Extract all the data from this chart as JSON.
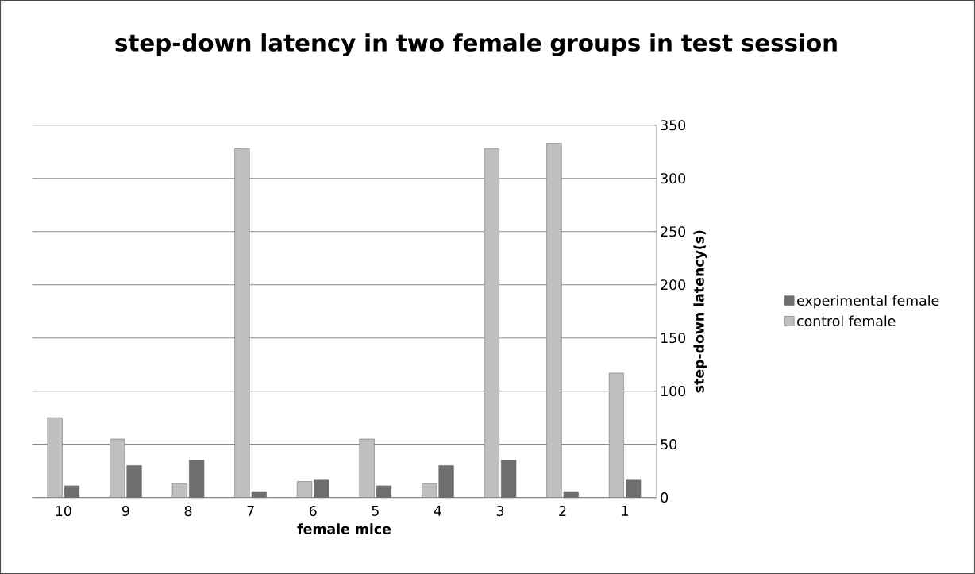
{
  "chart_data": {
    "type": "bar",
    "title": "step-down latency in two female groups in test session",
    "xlabel": "female mice",
    "ylabel": "step-down latency(s)",
    "categories": [
      "10",
      "9",
      "8",
      "7",
      "6",
      "5",
      "4",
      "3",
      "2",
      "1"
    ],
    "series": [
      {
        "name": "experimental female",
        "color": "#6e6e6e",
        "values": [
          11,
          30,
          35,
          5,
          17,
          11,
          30,
          35,
          5,
          17
        ]
      },
      {
        "name": "control female",
        "color": "#bfbfbf",
        "values": [
          75,
          55,
          13,
          328,
          15,
          55,
          13,
          328,
          333,
          117
        ]
      }
    ],
    "ylim": [
      0,
      350
    ],
    "yticks": [
      0,
      50,
      100,
      150,
      200,
      250,
      300,
      350
    ],
    "grid": "y",
    "legend": "right"
  }
}
